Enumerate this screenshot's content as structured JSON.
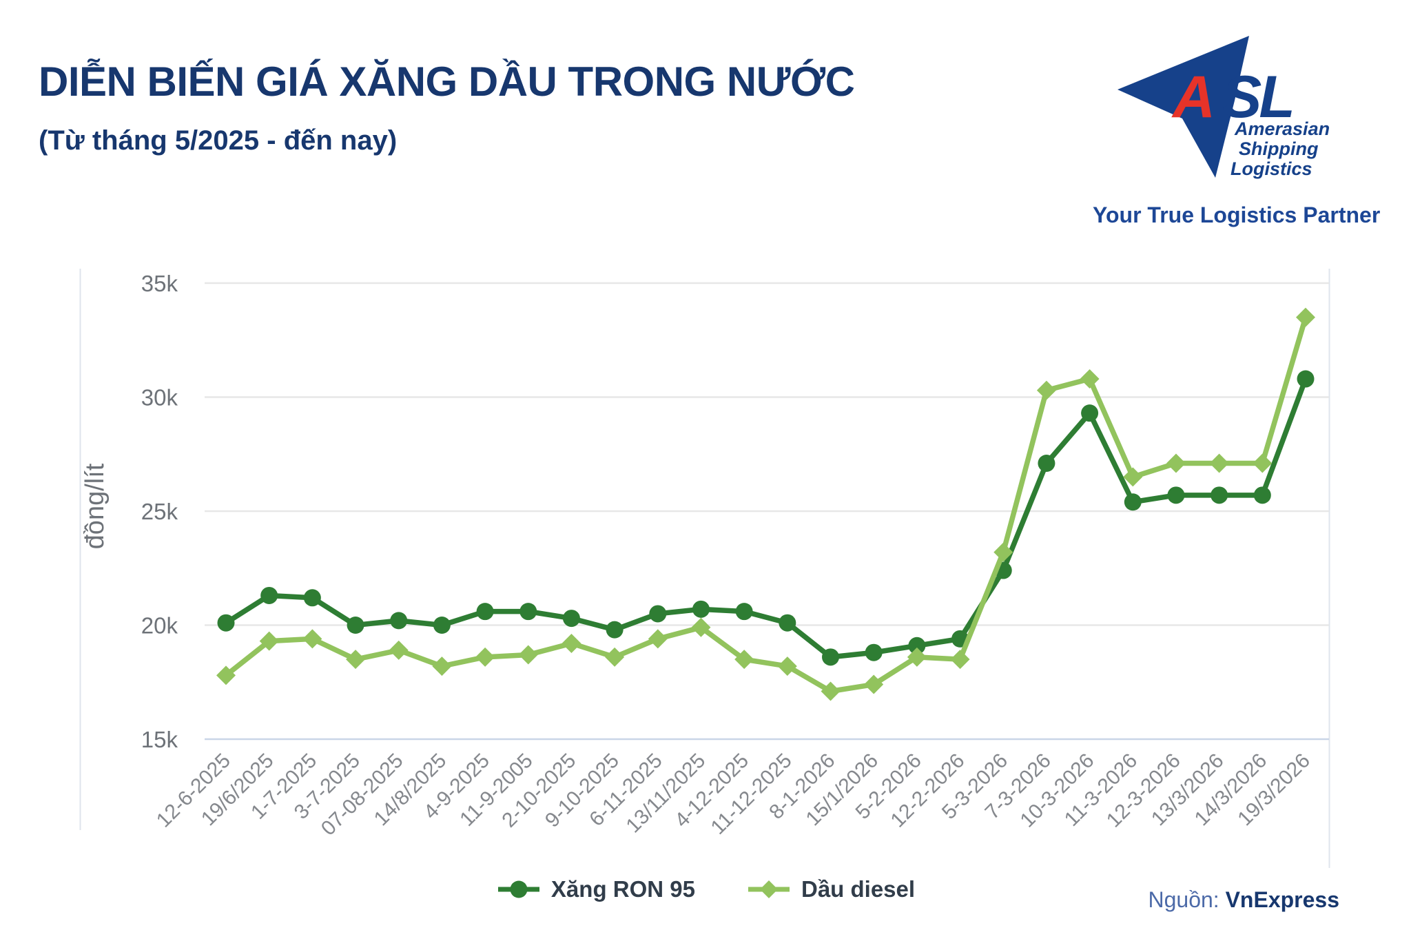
{
  "header": {
    "title": "DIỄN BIẾN GIÁ XĂNG DẦU TRONG NƯỚC",
    "subtitle": "(Từ tháng 5/2025 - đến nay)",
    "title_color": "#17376e"
  },
  "logo": {
    "letter_a": "A",
    "letters_sl": "SL",
    "company_lines": [
      "Amerasian",
      "Shipping",
      "Logistics"
    ],
    "tagline": "Your True Logistics Partner",
    "arrow_color": "#16418a",
    "accent_red": "#e63329"
  },
  "chart_data": {
    "type": "line",
    "title": "",
    "xlabel": "",
    "ylabel": "đồng/lít",
    "values_unit": "thousand đồng per litre (k)",
    "ylim": [
      15,
      35
    ],
    "grid": true,
    "legend_position": "bottom",
    "ytick_labels": [
      "35k",
      "30k",
      "25k",
      "20k",
      "15k"
    ],
    "ytick_values": [
      35,
      30,
      25,
      20,
      15
    ],
    "categories": [
      "12-6-2025",
      "19/6/2025",
      "1-7-2025",
      "3-7-2025",
      "07-08-2025",
      "14/8/2025",
      "4-9-2025",
      "11-9-2005",
      "2-10-2025",
      "9-10-2025",
      "6-11-2025",
      "13/11/2025",
      "4-12-2025",
      "11-12-2025",
      "8-1-2026",
      "15/1/2026",
      "5-2-2026",
      "12-2-2026",
      "5-3-2026",
      "7-3-2026",
      "10-3-2026",
      "11-3-2026",
      "12-3-2026",
      "13/3/2026",
      "14/3/2026",
      "19/3/2026"
    ],
    "series": [
      {
        "name": "Xăng RON 95",
        "marker": "circle",
        "color": "#2e7d33",
        "values": [
          20.1,
          21.3,
          21.2,
          20.0,
          20.2,
          20.0,
          20.6,
          20.6,
          20.3,
          19.8,
          20.5,
          20.7,
          20.6,
          20.1,
          18.6,
          18.8,
          19.1,
          19.4,
          22.4,
          27.1,
          29.3,
          25.4,
          25.7,
          25.7,
          25.7,
          30.8
        ]
      },
      {
        "name": "Dầu diesel",
        "marker": "diamond",
        "color": "#92c35d",
        "values": [
          17.8,
          19.3,
          19.4,
          18.5,
          18.9,
          18.2,
          18.6,
          18.7,
          19.2,
          18.6,
          19.4,
          19.9,
          18.5,
          18.2,
          17.1,
          17.4,
          18.6,
          18.5,
          23.2,
          30.3,
          30.8,
          26.5,
          27.1,
          27.1,
          27.1,
          33.5
        ]
      }
    ],
    "gridline_color": "#e7e7e7",
    "bottom_gridline_color": "#c9d5e8",
    "axis_label_color": "#6d7278",
    "xtick_label_color": "#85888d"
  },
  "source": {
    "label": "Nguồn:",
    "value": "VnExpress"
  }
}
